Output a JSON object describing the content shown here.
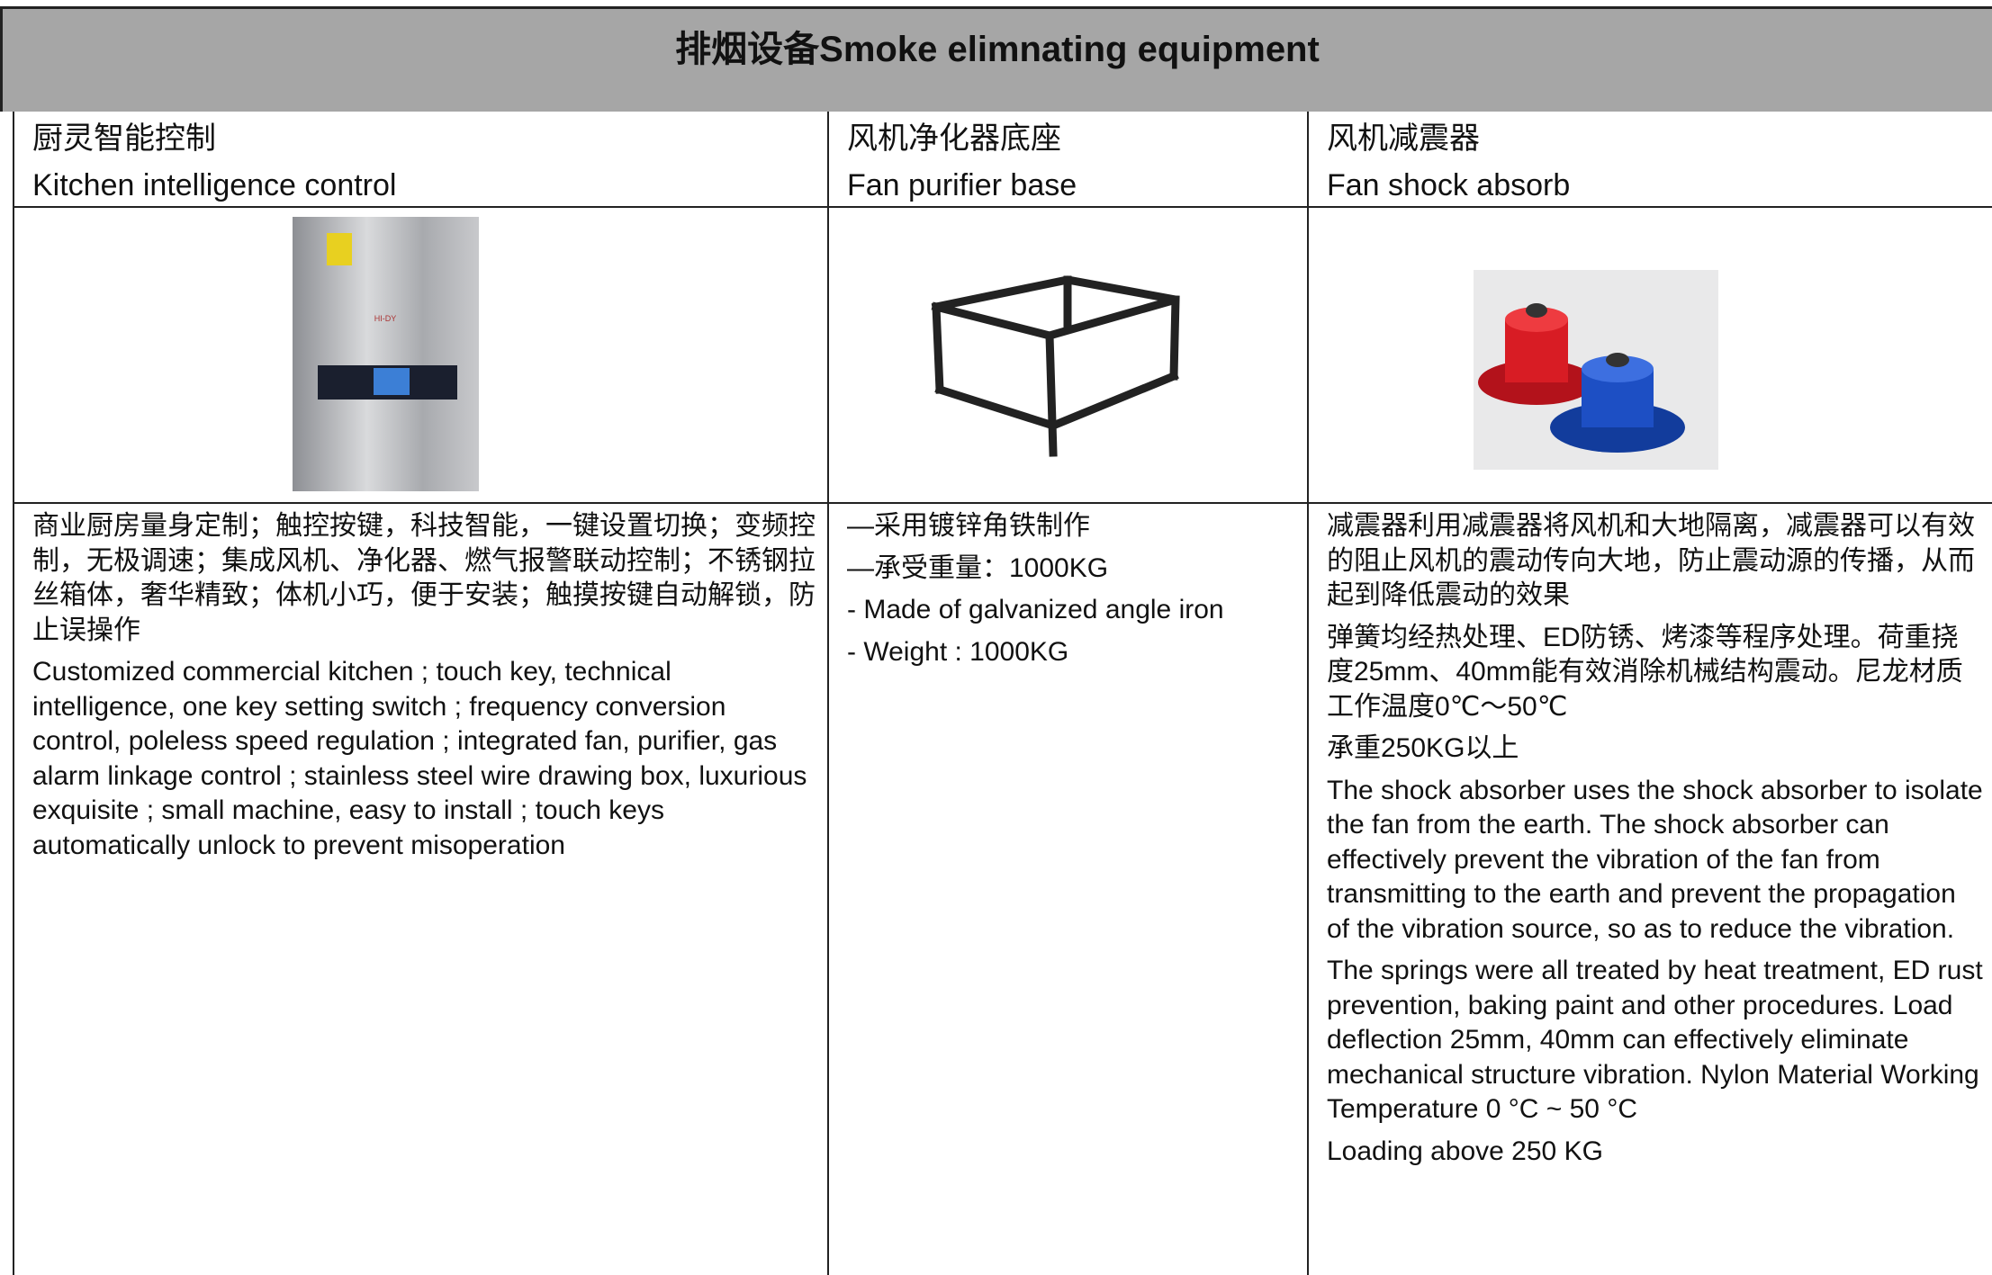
{
  "header": {
    "title": "排烟设备Smoke elimnating equipment"
  },
  "columns": [
    {
      "name_zh": "厨灵智能控制",
      "name_en": "Kitchen intelligence control",
      "paragraphs": [
        "商业厨房量身定制；触控按键，科技智能，一键设置切换；变频控制，无极调速；集成风机、净化器、燃气报警联动控制；不锈钢拉丝箱体，奢华精致；体机小巧，便于安装；触摸按键自动解锁，防止误操作",
        "Customized commercial kitchen ; touch key, technical intelligence, one key setting switch ; frequency conversion control, poleless speed regulation ; integrated fan, purifier, gas alarm linkage control ; stainless steel wire drawing box, luxurious exquisite ; small machine, easy to install ; touch keys automatically unlock to prevent misoperation"
      ]
    },
    {
      "name_zh": "风机净化器底座",
      "name_en": "Fan purifier base",
      "paragraphs": [
        "—采用镀锌角铁制作",
        "—承受重量：1000KG",
        "- Made of galvanized angle iron",
        "- Weight : 1000KG"
      ]
    },
    {
      "name_zh": "风机减震器",
      "name_en": "Fan shock absorb",
      "paragraphs": [
        "减震器利用减震器将风机和大地隔离，减震器可以有效的阻止风机的震动传向大地，防止震动源的传播，从而起到降低震动的效果",
        "弹簧均经热处理、ED防锈、烤漆等程序处理。荷重挠度25mm、40mm能有效消除机械结构震动。尼龙材质工作温度0℃～50℃",
        "承重250KG以上",
        "The shock absorber uses the shock absorber to isolate the fan from the earth. The shock absorber can effectively prevent the vibration of the fan from transmitting to the earth and prevent the propagation of the vibration source, so as to reduce the vibration.",
        "The springs were all treated by heat treatment, ED rust prevention, baking paint and other procedures. Load deflection 25mm, 40mm can effectively eliminate mechanical structure vibration. Nylon Material Working Temperature 0 °C ~ 50 °C",
        "Loading above 250 KG"
      ]
    }
  ]
}
